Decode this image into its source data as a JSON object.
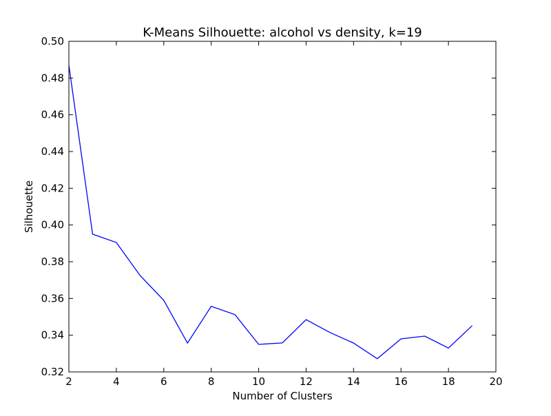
{
  "chart_data": {
    "type": "line",
    "title": "K-Means Silhouette: alcohol vs density, k=19",
    "xlabel": "Number of Clusters",
    "ylabel": "Silhouette",
    "xlim": [
      2,
      20
    ],
    "ylim": [
      0.32,
      0.5
    ],
    "x_ticks": [
      2,
      4,
      6,
      8,
      10,
      12,
      14,
      16,
      18,
      20
    ],
    "x_tick_labels": [
      "2",
      "4",
      "6",
      "8",
      "10",
      "12",
      "14",
      "16",
      "18",
      "20"
    ],
    "y_ticks": [
      0.32,
      0.34,
      0.36,
      0.38,
      0.4,
      0.42,
      0.44,
      0.46,
      0.48,
      0.5
    ],
    "y_tick_labels": [
      "0.32",
      "0.34",
      "0.36",
      "0.38",
      "0.40",
      "0.42",
      "0.44",
      "0.46",
      "0.48",
      "0.50"
    ],
    "grid": false,
    "legend": "none",
    "line_color": "#0000ff",
    "series": [
      {
        "x": [
          2,
          3,
          4,
          5,
          6,
          7,
          8,
          9,
          10,
          11,
          12,
          13,
          14,
          15,
          16,
          17,
          18,
          19
        ],
        "values": [
          0.487,
          0.395,
          0.3905,
          0.3725,
          0.359,
          0.3357,
          0.3557,
          0.3512,
          0.335,
          0.3358,
          0.3485,
          0.3415,
          0.3357,
          0.3272,
          0.338,
          0.3395,
          0.333,
          0.3452
        ]
      }
    ]
  }
}
